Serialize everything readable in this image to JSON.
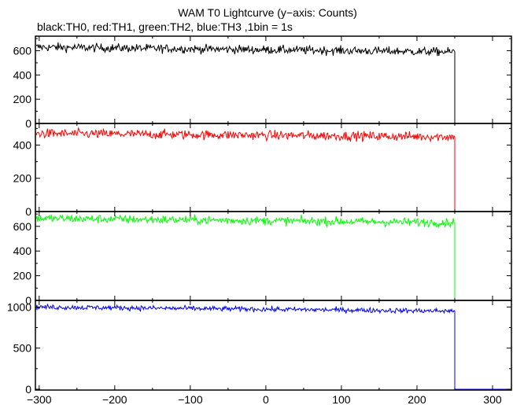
{
  "title": "WAM T0 Lightcurve (y−axis: Counts)",
  "subtitle": "black:TH0, red:TH1, green:TH2, blue:TH3 ,1bin = 1s",
  "chart_data": {
    "type": "line",
    "xlim": [
      -305,
      325
    ],
    "x_ticks": [
      "−300",
      "−200",
      "−100",
      "0",
      "100",
      "200",
      "300"
    ],
    "x_tick_values": [
      -300,
      -200,
      -100,
      0,
      100,
      200,
      300
    ],
    "step_x": 250,
    "series": [
      {
        "name": "TH0",
        "color": "#000000",
        "ylim": [
          0,
          720
        ],
        "y_ticks": [
          "0",
          "200",
          "400",
          "600"
        ],
        "y_tick_values": [
          0,
          200,
          400,
          600
        ],
        "start_level": 630,
        "end_level": 590,
        "noise": 25,
        "after_level": 0
      },
      {
        "name": "TH1",
        "color": "#ff0000",
        "ylim": [
          0,
          530
        ],
        "y_ticks": [
          "0",
          "200",
          "400"
        ],
        "y_tick_values": [
          0,
          200,
          400
        ],
        "start_level": 470,
        "end_level": 450,
        "noise": 20,
        "after_level": 0
      },
      {
        "name": "TH2",
        "color": "#00ff00",
        "ylim": [
          0,
          720
        ],
        "y_ticks": [
          "0",
          "200",
          "400",
          "600"
        ],
        "y_tick_values": [
          0,
          200,
          400,
          600
        ],
        "start_level": 665,
        "end_level": 630,
        "noise": 25,
        "after_level": 0
      },
      {
        "name": "TH3",
        "color": "#0000ff",
        "ylim": [
          -10,
          1080
        ],
        "y_ticks": [
          "0",
          "500",
          "1000"
        ],
        "y_tick_values": [
          0,
          500,
          1000
        ],
        "start_level": 1000,
        "end_level": 950,
        "noise": 22,
        "after_level": 0
      }
    ]
  }
}
